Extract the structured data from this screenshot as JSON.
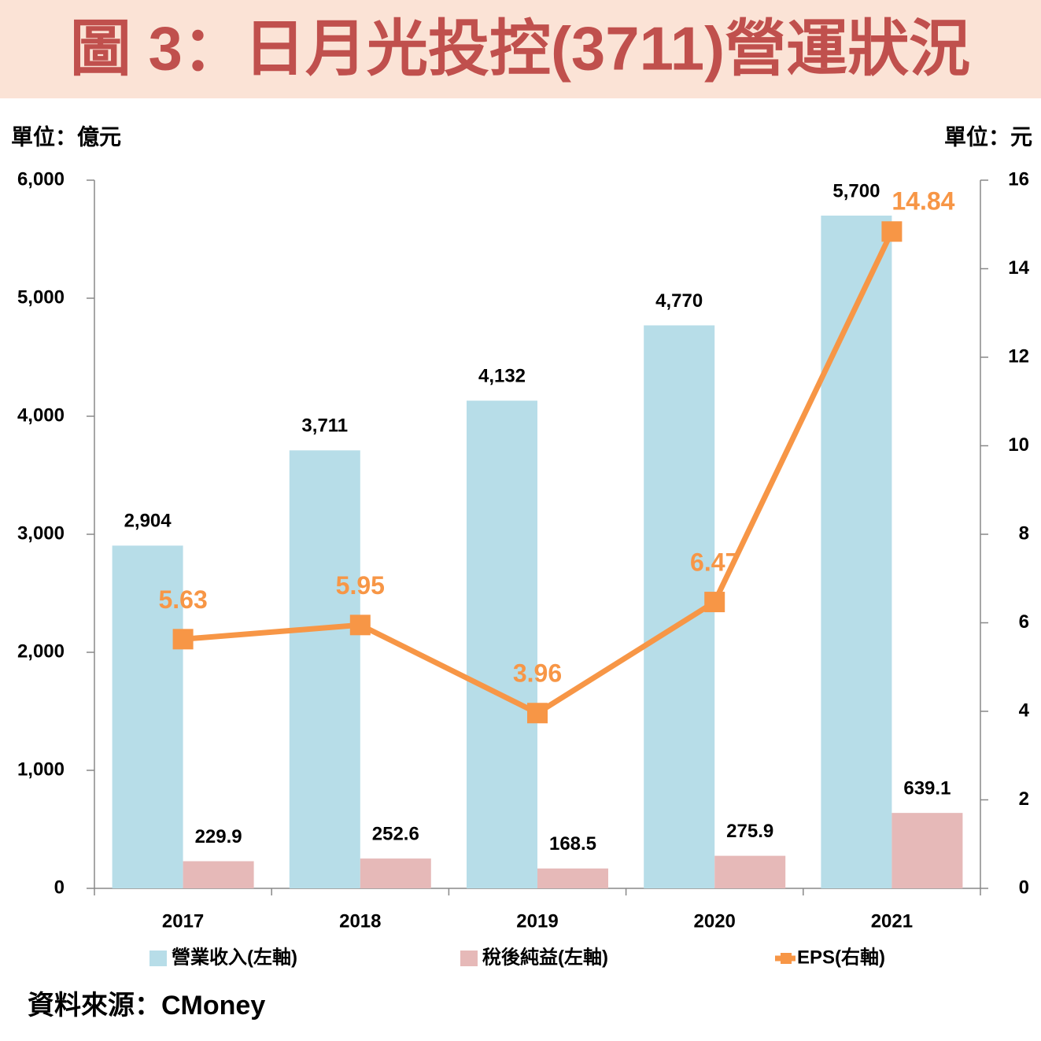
{
  "chart_data": {
    "type": "bar-line",
    "title": "圖 3：日月光投控(3711)營運狀況",
    "unit_left": "單位：億元",
    "unit_right": "單位：元",
    "source": "資料來源：CMoney",
    "categories": [
      "2017",
      "2018",
      "2019",
      "2020",
      "2021"
    ],
    "series": [
      {
        "name": "營業收入(左軸)",
        "type": "bar",
        "color": "#b7dde8",
        "values": [
          2904,
          3711,
          4132,
          4770,
          5700
        ],
        "value_labels": [
          "2,904",
          "3,711",
          "4,132",
          "4,770",
          "5,700"
        ]
      },
      {
        "name": "稅後純益(左軸)",
        "type": "bar",
        "color": "#e6b9b8",
        "values": [
          229.9,
          252.6,
          168.5,
          275.9,
          639.1
        ]
      },
      {
        "name": "EPS(右軸)",
        "type": "line",
        "axis": "y2",
        "color": "#f79646",
        "values": [
          5.63,
          5.95,
          3.96,
          6.47,
          14.84
        ]
      }
    ],
    "ylim": [
      0,
      6000
    ],
    "yticks": [
      0,
      {
        "value": 1000,
        "label": "1,000"
      },
      {
        "value": 2000,
        "label": "2,000"
      },
      {
        "value": 3000,
        "label": "3,000"
      },
      {
        "value": 4000,
        "label": "4,000"
      },
      {
        "value": 5000,
        "label": "5,000"
      },
      {
        "value": 6000,
        "label": "6,000"
      }
    ],
    "y2lim": [
      0,
      16
    ],
    "y2ticks": [
      0,
      2,
      4,
      6,
      8,
      10,
      12,
      14,
      16
    ],
    "grid": false
  }
}
